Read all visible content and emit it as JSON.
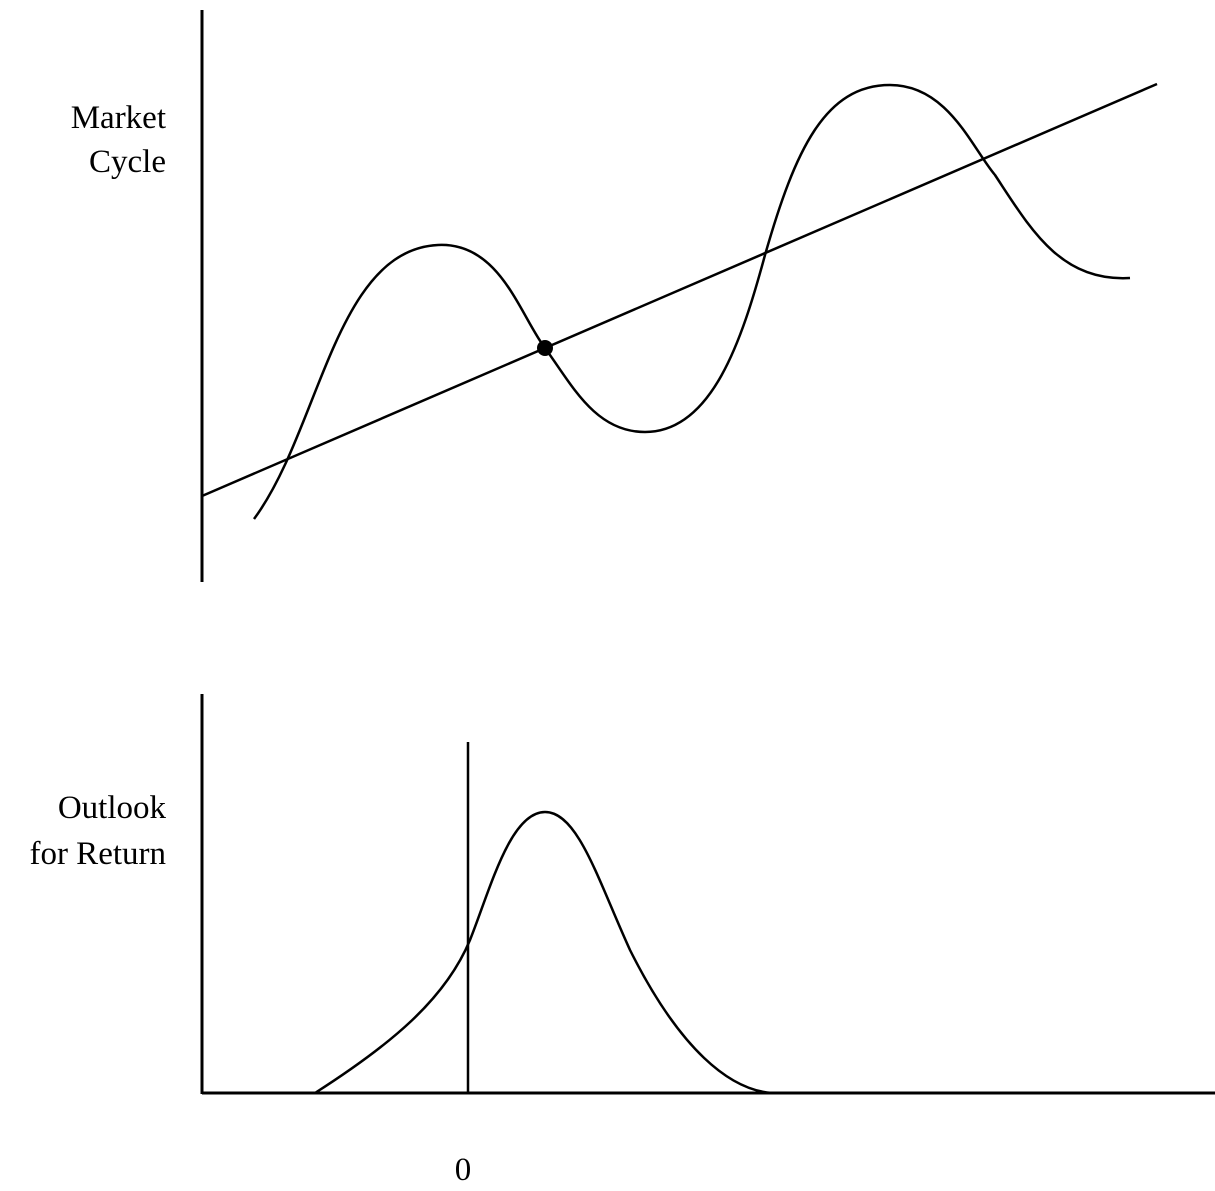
{
  "top_panel": {
    "ylabel_lines": [
      "Market",
      "Cycle"
    ]
  },
  "bottom_panel": {
    "ylabel_lines": [
      "Outlook",
      "for Return"
    ],
    "x_tick_zero": "0"
  },
  "colors": {
    "ink": "#000000",
    "background": "#ffffff"
  }
}
